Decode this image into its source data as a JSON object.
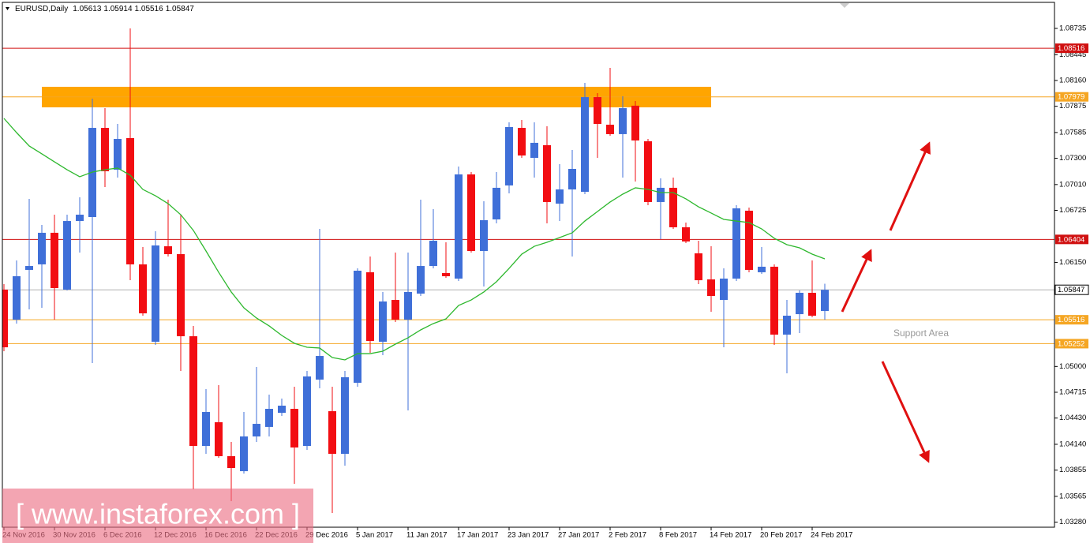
{
  "chart_data": {
    "type": "candlestick",
    "title": "EURUSD,Daily",
    "categories": [
      "24 Nov 2016",
      null,
      null,
      null,
      "30 Nov 2016",
      null,
      null,
      null,
      "6 Dec 2016",
      null,
      null,
      null,
      "12 Dec 2016",
      null,
      null,
      null,
      "16 Dec 2016",
      null,
      null,
      null,
      "22 Dec 2016",
      null,
      null,
      null,
      "29 Dec 2016",
      null,
      null,
      null,
      "5 Jan 2017",
      null,
      null,
      null,
      "11 Jan 2017",
      null,
      null,
      null,
      "17 Jan 2017",
      null,
      null,
      null,
      "23 Jan 2017",
      null,
      null,
      null,
      "27 Jan 2017",
      null,
      null,
      null,
      "2 Feb 2017",
      null,
      null,
      null,
      "8 Feb 2017",
      null,
      null,
      null,
      "14 Feb 2017",
      null,
      null,
      null,
      "20 Feb 2017",
      null,
      null,
      null,
      "24 Feb 2017",
      null
    ],
    "open": [
      1.05849,
      1.05517,
      1.06067,
      1.06128,
      1.06477,
      1.05849,
      1.06607,
      1.06651,
      1.07636,
      1.07174,
      1.07523,
      1.06128,
      1.05273,
      1.06328,
      1.06241,
      1.05334,
      1.04122,
      1.04384,
      1.04009,
      1.03843,
      1.04227,
      1.04332,
      1.04488,
      1.04532,
      1.04122,
      1.04855,
      1.04506,
      1.04035,
      1.0482,
      1.06041,
      1.05273,
      1.05735,
      1.05517,
      1.05805,
      1.0611,
      1.06032,
      1.05971,
      1.07122,
      1.06276,
      1.06625,
      1.07,
      1.07636,
      1.07305,
      1.07445,
      1.06799,
      1.06956,
      1.0693,
      1.07976,
      1.07671,
      1.07567,
      1.07881,
      1.07488,
      1.06817,
      1.06974,
      1.06538,
      1.0625,
      1.05962,
      1.05735,
      1.05971,
      1.06721,
      1.06041,
      1.06102,
      1.05352,
      1.05578,
      1.05814,
      1.05613
    ],
    "high": [
      1.0591,
      1.06171,
      1.06852,
      1.06564,
      1.06677,
      1.06677,
      1.06869,
      1.07959,
      1.07854,
      1.0768,
      1.08735,
      1.0632,
      1.06494,
      1.06843,
      1.06677,
      1.05448,
      1.0475,
      1.04794,
      1.04166,
      1.04497,
      1.04994,
      1.04689,
      1.04645,
      1.04776,
      1.04951,
      1.0652,
      1.04776,
      1.04951,
      1.06084,
      1.06215,
      1.05823,
      1.06259,
      1.06259,
      1.06843,
      1.06738,
      1.06372,
      1.07209,
      1.07148,
      1.06825,
      1.07148,
      1.07697,
      1.07724,
      1.07697,
      1.07654,
      1.07235,
      1.07392,
      1.08133,
      1.0802,
      1.08299,
      1.07985,
      1.07933,
      1.07514,
      1.07078,
      1.07087,
      1.0659,
      1.06389,
      1.06328,
      1.06084,
      1.06782,
      1.06756,
      1.0632,
      1.06128,
      1.05735,
      1.0584,
      1.06171,
      1.05914
    ],
    "low": [
      1.05169,
      1.05474,
      1.05631,
      1.05648,
      1.05517,
      1.0584,
      1.06259,
      1.05038,
      1.06982,
      1.07087,
      1.05953,
      1.05561,
      1.05238,
      1.06215,
      1.04951,
      1.03643,
      1.04035,
      1.03991,
      1.03512,
      1.03817,
      1.04166,
      1.04227,
      1.04454,
      1.03704,
      1.04079,
      1.04759,
      1.03381,
      1.03904,
      1.04776,
      1.05151,
      1.05125,
      1.05491,
      1.04515,
      1.05779,
      1.06084,
      1.0598,
      1.05945,
      1.06259,
      1.05884,
      1.06581,
      1.06913,
      1.07305,
      1.07087,
      1.06581,
      1.06607,
      1.06215,
      1.06904,
      1.07305,
      1.07549,
      1.07087,
      1.07043,
      1.06782,
      1.06407,
      1.0652,
      1.06363,
      1.0591,
      1.05605,
      1.05212,
      1.05945,
      1.06041,
      1.06023,
      1.05238,
      1.04924,
      1.05369,
      1.05544,
      1.05516
    ],
    "close": [
      1.05212,
      1.05997,
      1.0611,
      1.06477,
      1.05866,
      1.06607,
      1.06677,
      1.07636,
      1.07157,
      1.07514,
      1.06128,
      1.05587,
      1.06337,
      1.06241,
      1.05334,
      1.04122,
      1.04497,
      1.04009,
      1.03878,
      1.04227,
      1.04366,
      1.04532,
      1.04567,
      1.04105,
      1.0489,
      1.05116,
      1.04035,
      1.04881,
      1.06058,
      1.05282,
      1.05718,
      1.05517,
      1.05823,
      1.0611,
      1.06389,
      1.05997,
      1.07122,
      1.06276,
      1.06616,
      1.06974,
      1.07645,
      1.07331,
      1.07471,
      1.06817,
      1.06956,
      1.07183,
      1.07976,
      1.0768,
      1.07567,
      1.07854,
      1.07497,
      1.06817,
      1.06974,
      1.06538,
      1.06381,
      1.05953,
      1.05779,
      1.05971,
      1.06747,
      1.06067,
      1.06102,
      1.05352,
      1.05561,
      1.05814,
      1.05561,
      1.05847
    ],
    "up_color": "#3f6fd8",
    "down_color": "#f20d12",
    "ma": {
      "color": "#2eb82e",
      "values": [
        1.07741,
        1.07584,
        1.07436,
        1.07349,
        1.07261,
        1.07174,
        1.07096,
        1.07148,
        1.07174,
        1.07192,
        1.07113,
        1.06956,
        1.06886,
        1.06799,
        1.06677,
        1.06503,
        1.06276,
        1.06041,
        1.05823,
        1.05648,
        1.05535,
        1.05448,
        1.05343,
        1.05256,
        1.05212,
        1.05204,
        1.05099,
        1.05073,
        1.05142,
        1.05142,
        1.05169,
        1.05247,
        1.05317,
        1.05404,
        1.05474,
        1.05526,
        1.05674,
        1.05735,
        1.05823,
        1.05936,
        1.06084,
        1.06241,
        1.06328,
        1.06372,
        1.06424,
        1.06477,
        1.06607,
        1.06712,
        1.06817,
        1.06904,
        1.06974,
        1.06956,
        1.06921,
        1.06921,
        1.06852,
        1.06764,
        1.06695,
        1.06625,
        1.06607,
        1.0659,
        1.0652,
        1.06416,
        1.06346,
        1.06311,
        1.06241,
        1.06189
      ]
    },
    "ylim": [
      1.03224,
      1.09049
    ],
    "yticks": [
      1.08735,
      1.08445,
      {
        "value": 1.0816,
        "label": "1.08160"
      },
      1.07875,
      1.07585,
      {
        "value": 1.073,
        "label": "1.07300"
      },
      {
        "value": 1.0701,
        "label": "1.07010"
      },
      1.06725,
      {
        "value": 1.0615,
        "label": "1.06150"
      },
      {
        "value": 1.05,
        "label": "1.05000"
      },
      1.04715,
      {
        "value": 1.0443,
        "label": "1.04430"
      },
      {
        "value": 1.0414,
        "label": "1.04140"
      },
      1.03855,
      1.03565,
      {
        "value": 1.0328,
        "label": "1.03280"
      }
    ],
    "levels": [
      {
        "value": 1.08516,
        "color": "#d01010"
      },
      {
        "value": 1.07979,
        "color": "#f5a623"
      },
      {
        "value": 1.06404,
        "color": "#d01010"
      },
      {
        "value": 1.05847,
        "color": "#b0b0b0"
      },
      {
        "value": 1.05516,
        "color": "#f5a623"
      },
      {
        "value": 1.05252,
        "color": "#f5a623"
      }
    ],
    "zone": {
      "from": 1.07863,
      "to": 1.0809,
      "color": "#ffa500"
    },
    "annotation": "Support Area",
    "watermark": "[ www.instaforex.com ]"
  }
}
